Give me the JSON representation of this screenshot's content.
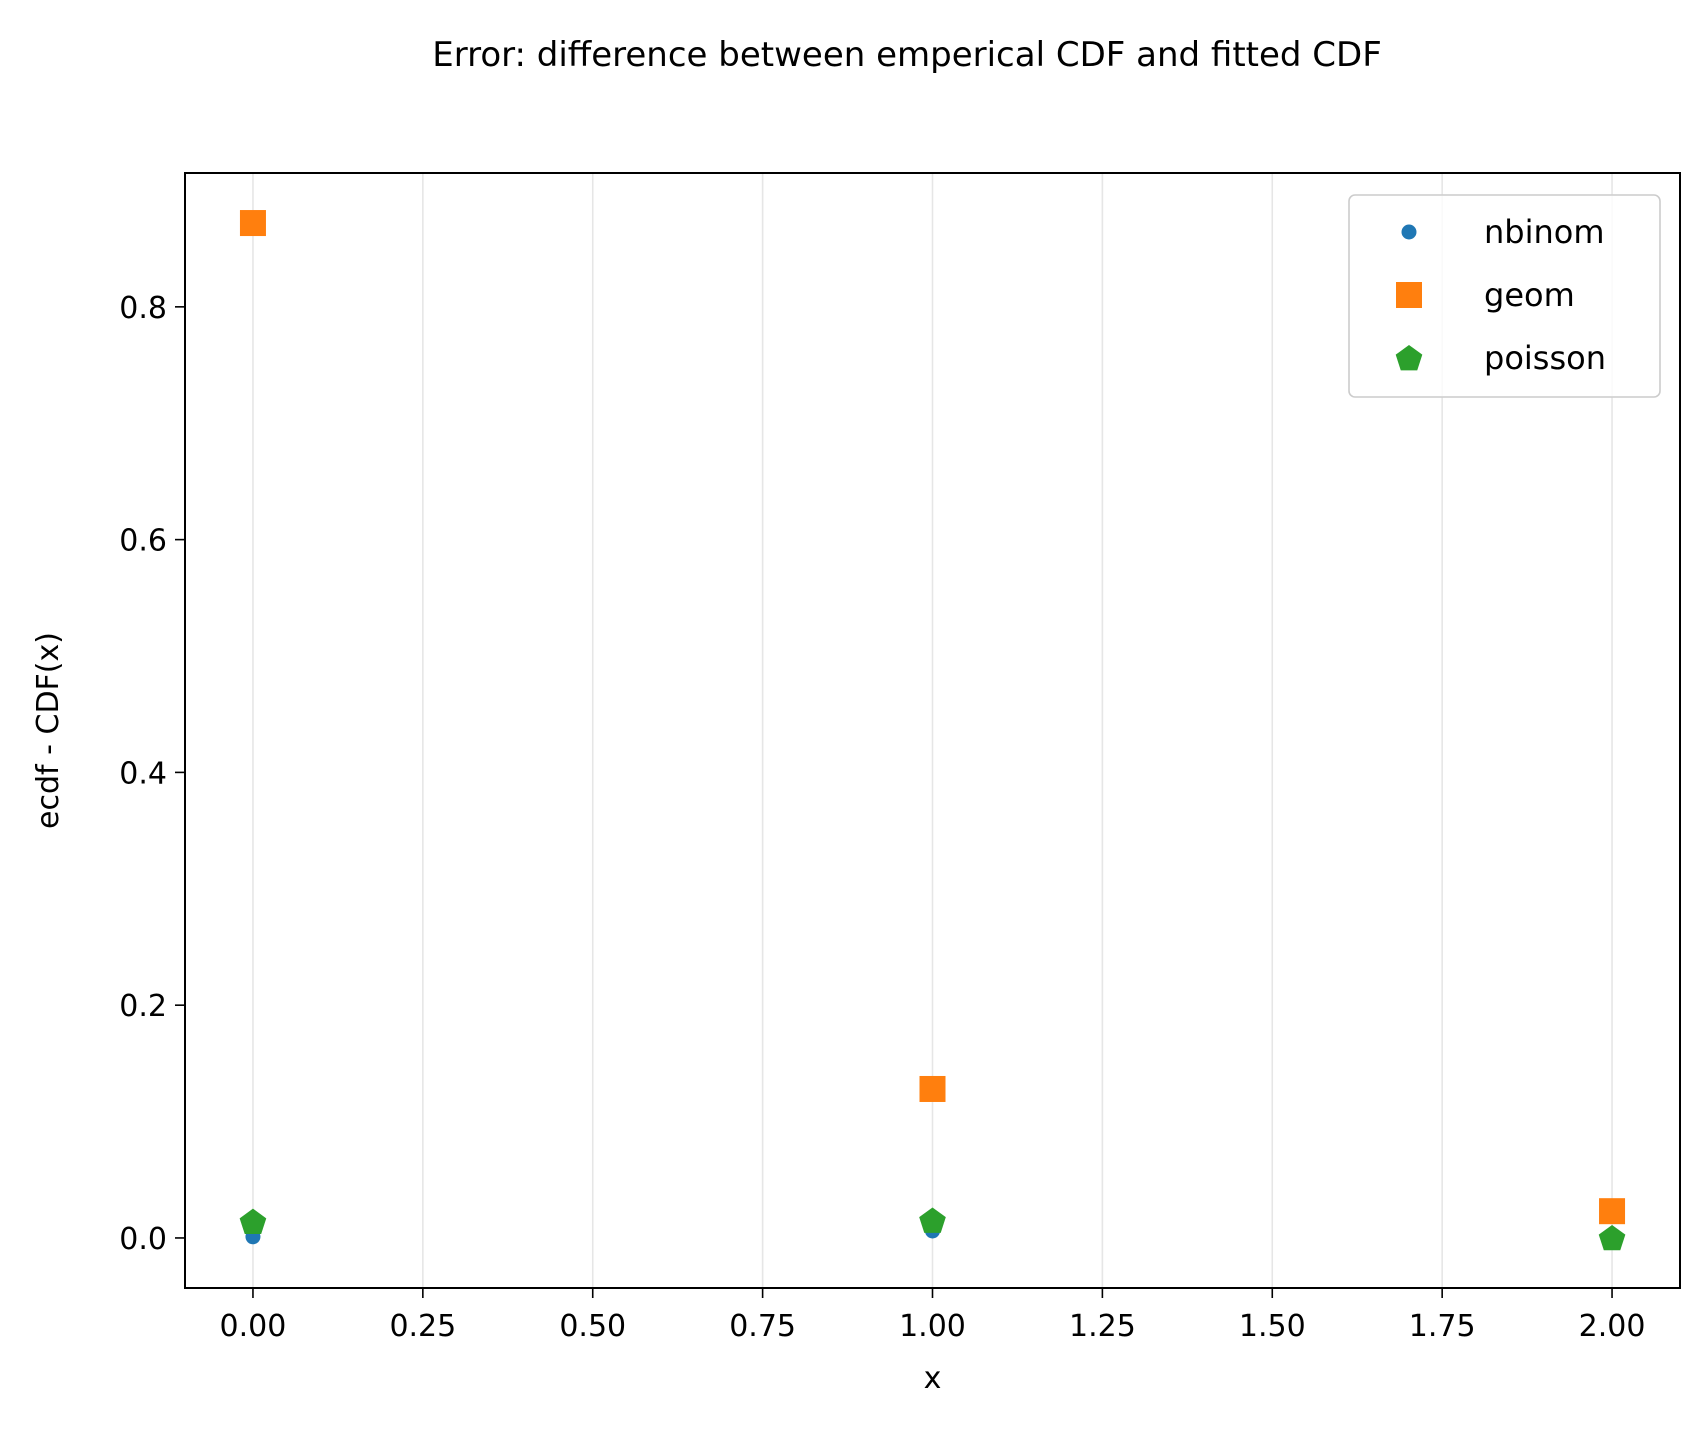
{
  "chart_data": {
    "type": "scatter",
    "title": "Error: difference between emperical CDF and fitted CDF",
    "xlabel": "x",
    "ylabel": "ecdf - CDF(x)",
    "xlim": [
      -0.1,
      2.1
    ],
    "ylim": [
      -0.043,
      0.915
    ],
    "xticks": [
      0.0,
      0.25,
      0.5,
      0.75,
      1.0,
      1.25,
      1.5,
      1.75,
      2.0
    ],
    "xtick_labels": [
      "0.00",
      "0.25",
      "0.50",
      "0.75",
      "1.00",
      "1.25",
      "1.50",
      "1.75",
      "2.00"
    ],
    "yticks": [
      0.0,
      0.2,
      0.4,
      0.6,
      0.8
    ],
    "ytick_labels": [
      "0.0",
      "0.2",
      "0.4",
      "0.6",
      "0.8"
    ],
    "grid": "x-major",
    "legend_position": "top-right",
    "series": [
      {
        "name": "nbinom",
        "marker": "circle",
        "color": "#1f77b4",
        "x": [
          0,
          1,
          2
        ],
        "y": [
          0.001,
          0.006,
          0.0
        ]
      },
      {
        "name": "geom",
        "marker": "square",
        "color": "#ff7f0e",
        "x": [
          0,
          1,
          2
        ],
        "y": [
          0.872,
          0.128,
          0.023
        ]
      },
      {
        "name": "poisson",
        "marker": "pentagon",
        "color": "#2ca02c",
        "x": [
          0,
          1,
          2
        ],
        "y": [
          0.014,
          0.015,
          0.0
        ]
      }
    ]
  }
}
